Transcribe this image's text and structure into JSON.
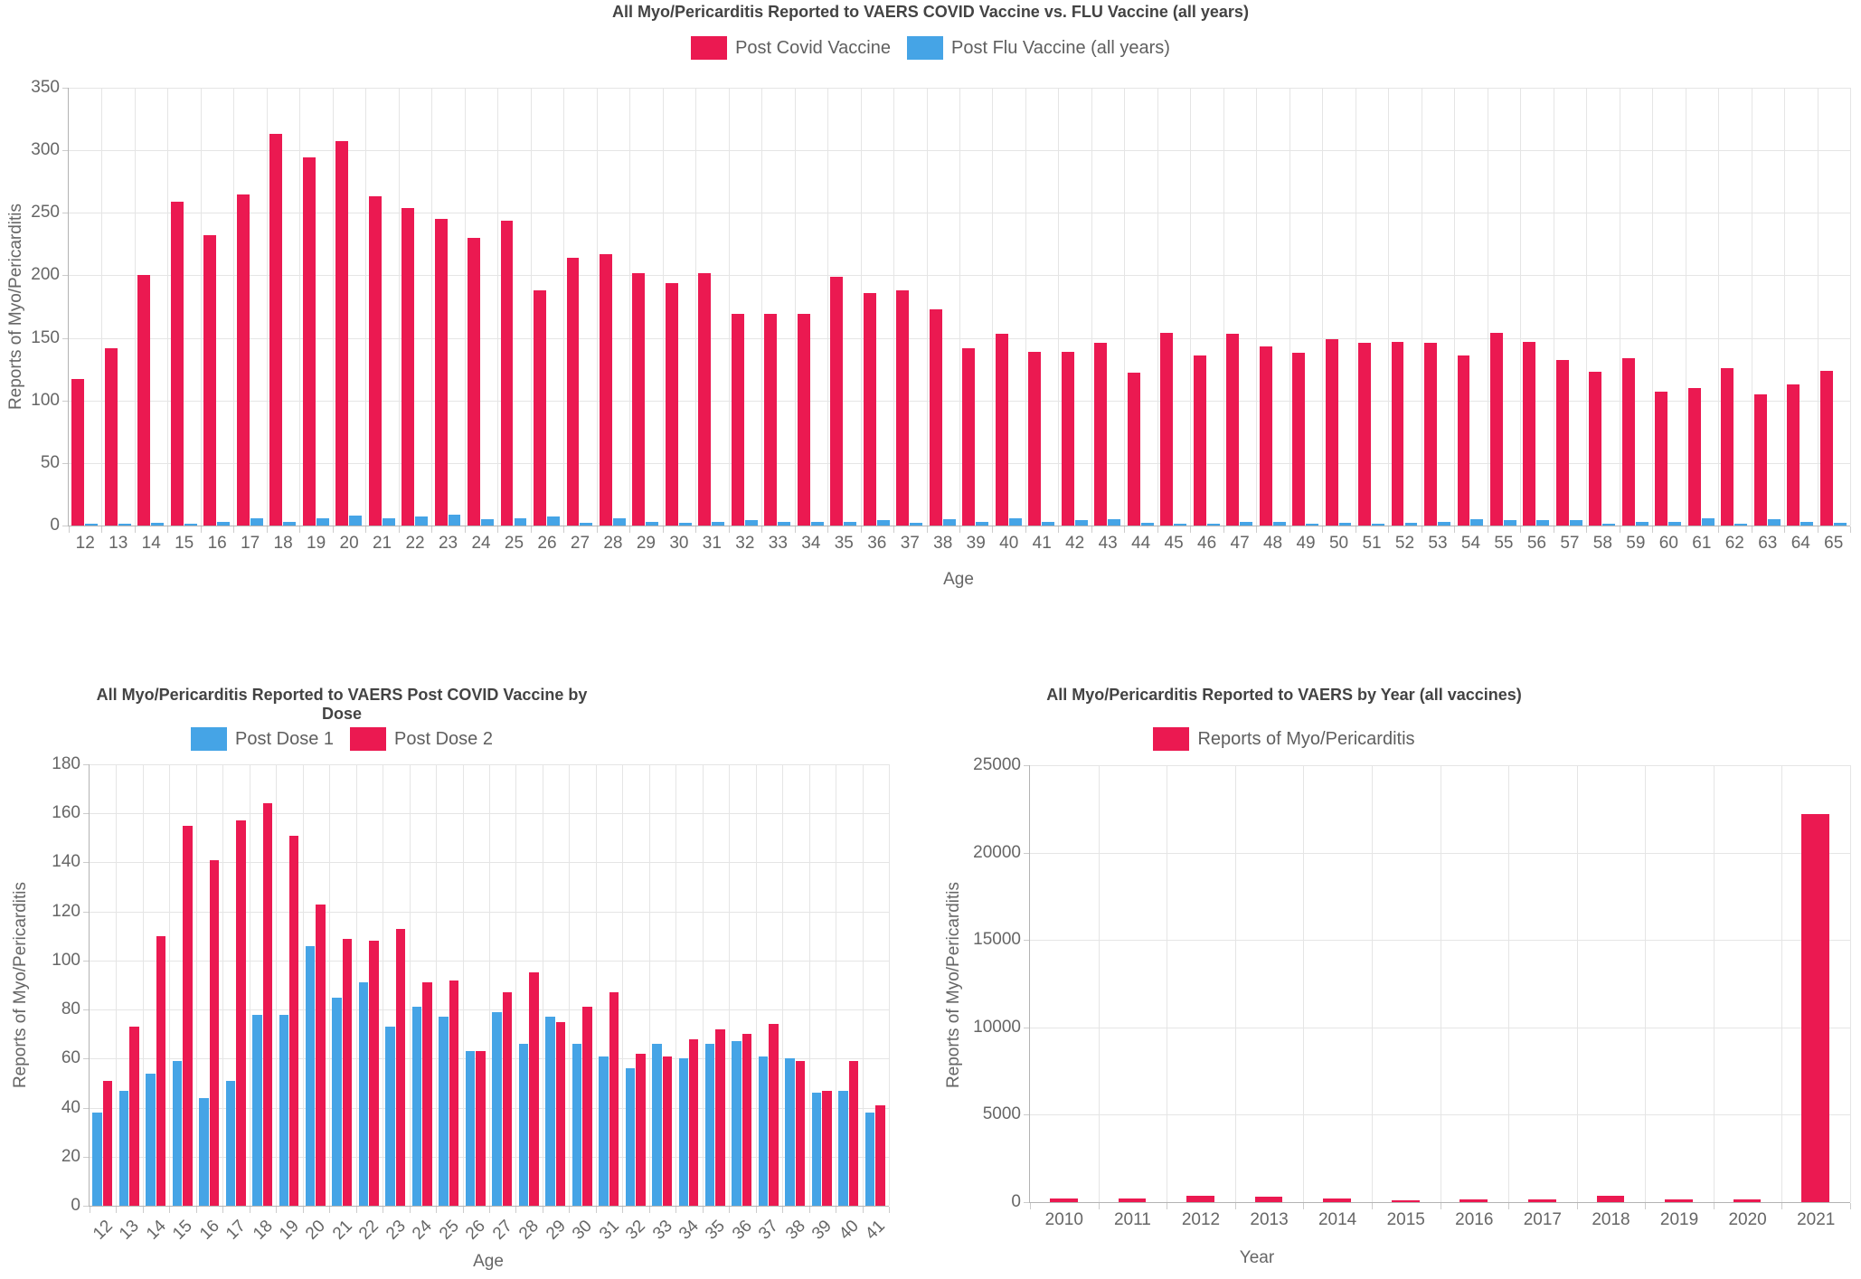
{
  "colors": {
    "red": "#EB1951",
    "blue": "#45A4E6",
    "grid": "#E5E5E5",
    "axis_line": "#B3B3B3",
    "tick_text": "#666666",
    "title_text": "#434343",
    "legend_text": "#5F5F5F"
  },
  "chart_data": [
    {
      "type": "bar",
      "title": "All Myo/Pericarditis Reported to VAERS COVID Vaccine vs. FLU Vaccine (all years)",
      "xlabel": "Age",
      "ylabel": "Reports of Myo/Pericarditis",
      "ylim": [
        0,
        350
      ],
      "ytick_step": 50,
      "grid": true,
      "legend_position": "top",
      "categories": [
        "12",
        "13",
        "14",
        "15",
        "16",
        "17",
        "18",
        "19",
        "20",
        "21",
        "22",
        "23",
        "24",
        "25",
        "26",
        "27",
        "28",
        "29",
        "30",
        "31",
        "32",
        "33",
        "34",
        "35",
        "36",
        "37",
        "38",
        "39",
        "40",
        "41",
        "42",
        "43",
        "44",
        "45",
        "46",
        "47",
        "48",
        "49",
        "50",
        "51",
        "52",
        "53",
        "54",
        "55",
        "56",
        "57",
        "58",
        "59",
        "60",
        "61",
        "62",
        "63",
        "64",
        "65"
      ],
      "series": [
        {
          "name": "Post Covid Vaccine",
          "color_key": "red",
          "values": [
            117,
            142,
            200,
            259,
            232,
            265,
            313,
            294,
            307,
            263,
            254,
            245,
            230,
            244,
            188,
            214,
            217,
            202,
            194,
            202,
            169,
            169,
            169,
            199,
            186,
            188,
            173,
            142,
            153,
            139,
            139,
            146,
            122,
            154,
            136,
            153,
            143,
            138,
            149,
            146,
            147,
            146,
            136,
            154,
            147,
            132,
            123,
            134,
            107,
            110,
            126,
            105,
            113,
            124
          ]
        },
        {
          "name": "Post Flu Vaccine (all years)",
          "color_key": "blue",
          "values": [
            1,
            1,
            2,
            1,
            3,
            6,
            3,
            6,
            8,
            6,
            7,
            9,
            5,
            6,
            7,
            2,
            6,
            3,
            2,
            3,
            4,
            3,
            3,
            3,
            4,
            2,
            5,
            3,
            6,
            3,
            4,
            5,
            2,
            1,
            1,
            3,
            3,
            1,
            2,
            1,
            2,
            3,
            5,
            4,
            4,
            4,
            1,
            3,
            3,
            6,
            1,
            5,
            3,
            2
          ]
        }
      ]
    },
    {
      "type": "bar",
      "title": "All Myo/Pericarditis Reported to VAERS Post COVID Vaccine by Dose",
      "xlabel": "Age",
      "ylabel": "Reports of Myo/Pericarditis",
      "ylim": [
        0,
        180
      ],
      "ytick_step": 20,
      "grid": true,
      "legend_position": "top",
      "x_label_rotation": 45,
      "categories": [
        "12",
        "13",
        "14",
        "15",
        "16",
        "17",
        "18",
        "19",
        "20",
        "21",
        "22",
        "23",
        "24",
        "25",
        "26",
        "27",
        "28",
        "29",
        "30",
        "31",
        "32",
        "33",
        "34",
        "35",
        "36",
        "37",
        "38",
        "39",
        "40",
        "41"
      ],
      "series": [
        {
          "name": "Post Dose 1",
          "color_key": "blue",
          "values": [
            38,
            47,
            54,
            59,
            44,
            51,
            78,
            78,
            106,
            85,
            91,
            73,
            81,
            77,
            63,
            79,
            66,
            77,
            66,
            61,
            56,
            66,
            60,
            66,
            67,
            61,
            60,
            46,
            47,
            38
          ]
        },
        {
          "name": "Post Dose 2",
          "color_key": "red",
          "values": [
            51,
            73,
            110,
            155,
            141,
            157,
            164,
            151,
            123,
            109,
            108,
            113,
            91,
            92,
            63,
            87,
            95,
            75,
            81,
            87,
            62,
            61,
            68,
            72,
            70,
            74,
            59,
            47,
            59,
            41
          ]
        }
      ]
    },
    {
      "type": "bar",
      "title": "All Myo/Pericarditis Reported to VAERS by Year (all vaccines)",
      "xlabel": "Year",
      "ylabel": "Reports of Myo/Pericarditis",
      "ylim": [
        0,
        25000
      ],
      "ytick_step": 5000,
      "grid": true,
      "legend_position": "top",
      "categories": [
        "2010",
        "2011",
        "2012",
        "2013",
        "2014",
        "2015",
        "2016",
        "2017",
        "2018",
        "2019",
        "2020",
        "2021"
      ],
      "series": [
        {
          "name": "Reports of Myo/Pericarditis",
          "color_key": "red",
          "values": [
            200,
            190,
            350,
            310,
            190,
            100,
            140,
            155,
            350,
            170,
            170,
            22200
          ]
        }
      ]
    }
  ]
}
